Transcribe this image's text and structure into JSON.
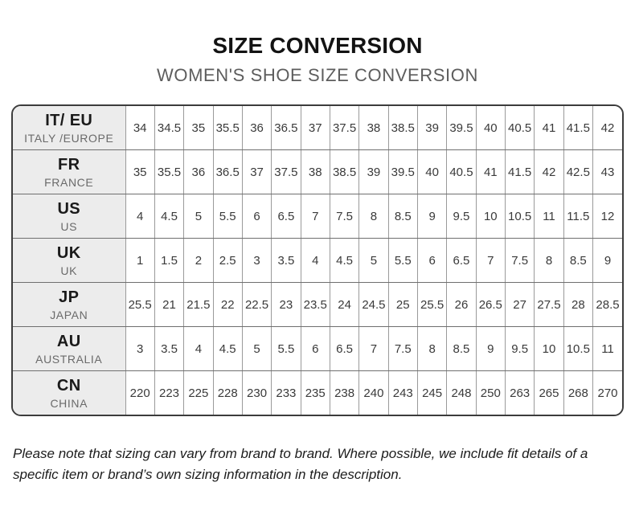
{
  "chart_data": {
    "type": "table",
    "title": "SIZE CONVERSION",
    "subtitle": "WOMEN'S SHOE SIZE CONVERSION",
    "note": "Please note that sizing can vary from brand to brand. Where possible, we include fit details of a specific item or brand’s own sizing information in the description.",
    "columns_per_row": 17,
    "rows": [
      {
        "code": "IT/ EU",
        "region": "ITALY /EUROPE",
        "values": [
          "34",
          "34.5",
          "35",
          "35.5",
          "36",
          "36.5",
          "37",
          "37.5",
          "38",
          "38.5",
          "39",
          "39.5",
          "40",
          "40.5",
          "41",
          "41.5",
          "42"
        ]
      },
      {
        "code": "FR",
        "region": "FRANCE",
        "values": [
          "35",
          "35.5",
          "36",
          "36.5",
          "37",
          "37.5",
          "38",
          "38.5",
          "39",
          "39.5",
          "40",
          "40.5",
          "41",
          "41.5",
          "42",
          "42.5",
          "43"
        ]
      },
      {
        "code": "US",
        "region": "US",
        "values": [
          "4",
          "4.5",
          "5",
          "5.5",
          "6",
          "6.5",
          "7",
          "7.5",
          "8",
          "8.5",
          "9",
          "9.5",
          "10",
          "10.5",
          "11",
          "11.5",
          "12"
        ]
      },
      {
        "code": "UK",
        "region": "UK",
        "values": [
          "1",
          "1.5",
          "2",
          "2.5",
          "3",
          "3.5",
          "4",
          "4.5",
          "5",
          "5.5",
          "6",
          "6.5",
          "7",
          "7.5",
          "8",
          "8.5",
          "9"
        ]
      },
      {
        "code": "JP",
        "region": "JAPAN",
        "values": [
          "25.5",
          "21",
          "21.5",
          "22",
          "22.5",
          "23",
          "23.5",
          "24",
          "24.5",
          "25",
          "25.5",
          "26",
          "26.5",
          "27",
          "27.5",
          "28",
          "28.5"
        ]
      },
      {
        "code": "AU",
        "region": "AUSTRALIA",
        "values": [
          "3",
          "3.5",
          "4",
          "4.5",
          "5",
          "5.5",
          "6",
          "6.5",
          "7",
          "7.5",
          "8",
          "8.5",
          "9",
          "9.5",
          "10",
          "10.5",
          "11"
        ]
      },
      {
        "code": "CN",
        "region": "CHINA",
        "values": [
          "220",
          "223",
          "225",
          "228",
          "230",
          "233",
          "235",
          "238",
          "240",
          "243",
          "245",
          "248",
          "250",
          "263",
          "265",
          "268",
          "270"
        ]
      }
    ],
    "layout": {
      "legend": "none",
      "grid": "on"
    },
    "colors": {
      "title_text": "#131313",
      "subtitle_text": "#5d5d5d",
      "table_outer_border": "#3c3c3c",
      "table_inner_border": "#9a9a9a",
      "header_cell_background": "#ececec",
      "cell_text": "#3a3a3a",
      "page_background": "#ffffff"
    }
  }
}
